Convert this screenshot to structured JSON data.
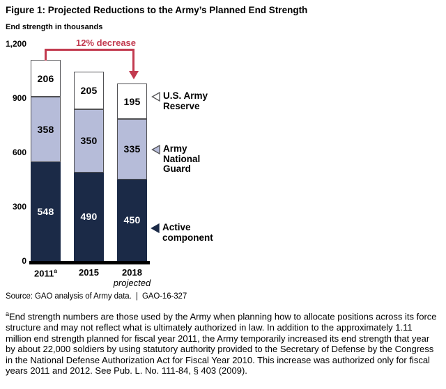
{
  "figure": {
    "title": "Figure 1: Projected Reductions to the Army’s Planned End Strength",
    "subtitle": "End strength in thousands",
    "source": "Source: GAO analysis of Army data.  |  GAO-16-327",
    "footnote_marker": "a",
    "footnote": "End strength numbers are those used by the Army when planning how to allocate positions across its force structure and may not reflect what is ultimately authorized in law. In addition to the approximately 1.11 million end strength planned for fiscal year 2011, the Army temporarily increased its end strength that year by about 22,000 soldiers by using statutory authority provided to the Secretary of Defense by the Congress in the National Defense Authorization Act for Fiscal Year 2010. This increase was authorized only for fiscal years 2011 and 2012. See Pub. L. No. 111-84, § 403 (2009)."
  },
  "chart_data": {
    "type": "bar",
    "stacked": true,
    "title": "Figure 1: Projected Reductions to the Army’s Planned End Strength",
    "ylabel": "End strength in thousands",
    "xlabel": "",
    "categories": [
      "2011",
      "2015",
      "2018"
    ],
    "category_superscripts": [
      "a",
      "",
      ""
    ],
    "category_sublabels": [
      "",
      "",
      "projected"
    ],
    "series": [
      {
        "name": "Active component",
        "values": [
          548,
          490,
          450
        ],
        "color": "#1b2a47",
        "label_color": "#ffffff",
        "border": null
      },
      {
        "name": "Army National Guard",
        "values": [
          358,
          350,
          335
        ],
        "color": "#b6bcd9",
        "label_color": "#000000",
        "border": "#515154"
      },
      {
        "name": "U.S. Army Reserve",
        "values": [
          206,
          205,
          195
        ],
        "color": "#ffffff",
        "label_color": "#000000",
        "border": "#515154"
      }
    ],
    "totals": [
      1112,
      1045,
      980
    ],
    "ylim": [
      0,
      1200
    ],
    "yticks": [
      1200,
      900,
      600,
      300,
      0
    ],
    "ytick_labels": [
      "1,200",
      "900",
      "600",
      "300",
      "0"
    ],
    "grid": false,
    "legend_position": "right",
    "annotation": {
      "text": "12% decrease",
      "color": "#c23a4f",
      "from_category": "2011",
      "to_category": "2018"
    },
    "legend": [
      {
        "label": "U.S. Army Reserve",
        "marker": "triangle-left",
        "marker_fill": "#ffffff",
        "marker_stroke": "#515154"
      },
      {
        "label": "Army National Guard",
        "marker": "triangle-left",
        "marker_fill": "#b6bcd9",
        "marker_stroke": "#515154"
      },
      {
        "label": "Active component",
        "marker": "triangle-left",
        "marker_fill": "#1b2a47",
        "marker_stroke": "#1b2a47"
      }
    ]
  }
}
